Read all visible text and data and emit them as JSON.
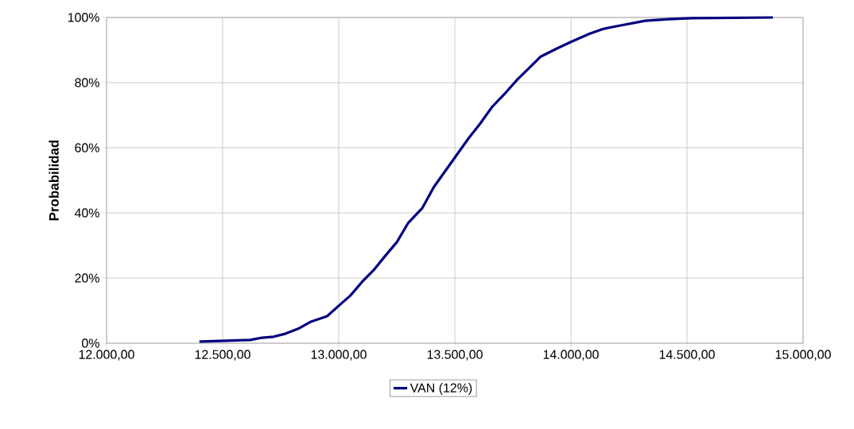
{
  "chart_data": {
    "type": "line",
    "ylabel": "Probabilidad",
    "x": [
      12400,
      12620,
      12670,
      12720,
      12770,
      12830,
      12880,
      12950,
      13000,
      13050,
      13100,
      13150,
      13200,
      13250,
      13300,
      13360,
      13410,
      13460,
      13510,
      13560,
      13610,
      13660,
      13720,
      13770,
      13820,
      13870,
      13940,
      14000,
      14080,
      14140,
      14210,
      14320,
      14420,
      14520,
      14870
    ],
    "series": [
      {
        "name": "VAN (12%)",
        "color": "#000080",
        "values": [
          0.5,
          1,
          1.7,
          2,
          2.9,
          4.6,
          6.6,
          8.3,
          11.5,
          14.6,
          18.8,
          22.4,
          26.8,
          31,
          37,
          41.5,
          48,
          53,
          58,
          63,
          67.5,
          72.5,
          77,
          81,
          84.5,
          88,
          90.5,
          92.5,
          95,
          96.5,
          97.5,
          99,
          99.5,
          99.8,
          100
        ]
      }
    ],
    "xlim": [
      12000,
      15000
    ],
    "xticks": [
      {
        "value": 12000,
        "label": "12.000,00"
      },
      {
        "value": 12500,
        "label": "12.500,00"
      },
      {
        "value": 13000,
        "label": "13.000,00"
      },
      {
        "value": 13500,
        "label": "13.500,00"
      },
      {
        "value": 14000,
        "label": "14.000,00"
      },
      {
        "value": 14500,
        "label": "14.500,00"
      },
      {
        "value": 15000,
        "label": "15.000,00"
      }
    ],
    "ylim": [
      0,
      100
    ],
    "yticks": [
      {
        "value": 0,
        "label": "0%"
      },
      {
        "value": 20,
        "label": "20%"
      },
      {
        "value": 40,
        "label": "40%"
      },
      {
        "value": 60,
        "label": "60%"
      },
      {
        "value": 80,
        "label": "80%"
      },
      {
        "value": 100,
        "label": "100%"
      }
    ],
    "grid": true,
    "legend": "bottom"
  }
}
